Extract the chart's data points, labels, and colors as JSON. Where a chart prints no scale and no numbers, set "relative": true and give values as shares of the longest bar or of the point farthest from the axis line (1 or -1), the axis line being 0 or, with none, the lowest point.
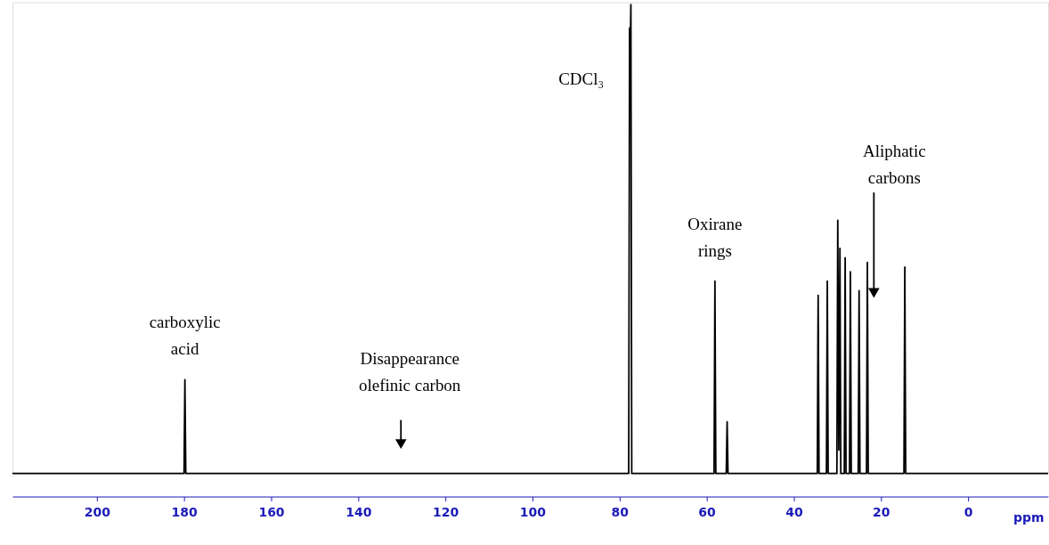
{
  "chart_data": {
    "type": "line",
    "relative": true,
    "xlabel": "ppm",
    "xlim": [
      219.4,
      -18.4
    ],
    "xticks": [
      200,
      180,
      160,
      140,
      120,
      100,
      80,
      60,
      40,
      20,
      0
    ],
    "series": [
      {
        "color": "#000000",
        "x": [
          219.4,
          180.0,
          179.8,
          179.6,
          77.9,
          77.7,
          77.55,
          77.4,
          77.2,
          58.3,
          58.1,
          57.9,
          55.5,
          55.3,
          55.1,
          34.6,
          34.4,
          34.2,
          32.5,
          32.3,
          32.1,
          30.1,
          29.9,
          29.65,
          29.4,
          29.2,
          28.4,
          28.2,
          28.0,
          27.2,
          27.0,
          26.8,
          25.2,
          25.0,
          24.8,
          23.3,
          23.1,
          22.9,
          14.7,
          14.5,
          14.3,
          -18.4
        ],
        "values": [
          0,
          0,
          0.2,
          0,
          0,
          0.95,
          0.9,
          1.0,
          0,
          0,
          0.41,
          0,
          0,
          0.11,
          0,
          0,
          0.38,
          0,
          0,
          0.41,
          0,
          0,
          0.54,
          0.05,
          0.48,
          0,
          0,
          0.46,
          0,
          0,
          0.43,
          0,
          0,
          0.39,
          0,
          0,
          0.45,
          0,
          0,
          0.44,
          0,
          0
        ]
      }
    ],
    "annotations": [
      {
        "text": "carboxylic acid",
        "x": 179.8,
        "y": 0.2
      },
      "Disappearance olefinic carbon",
      {
        "text": "CDCl₃",
        "x": 77.5,
        "y": 0.84
      },
      {
        "text": "Oxirane rings",
        "x": 58.1,
        "y": 0.41
      },
      "Aliphatic carbons"
    ]
  }
}
